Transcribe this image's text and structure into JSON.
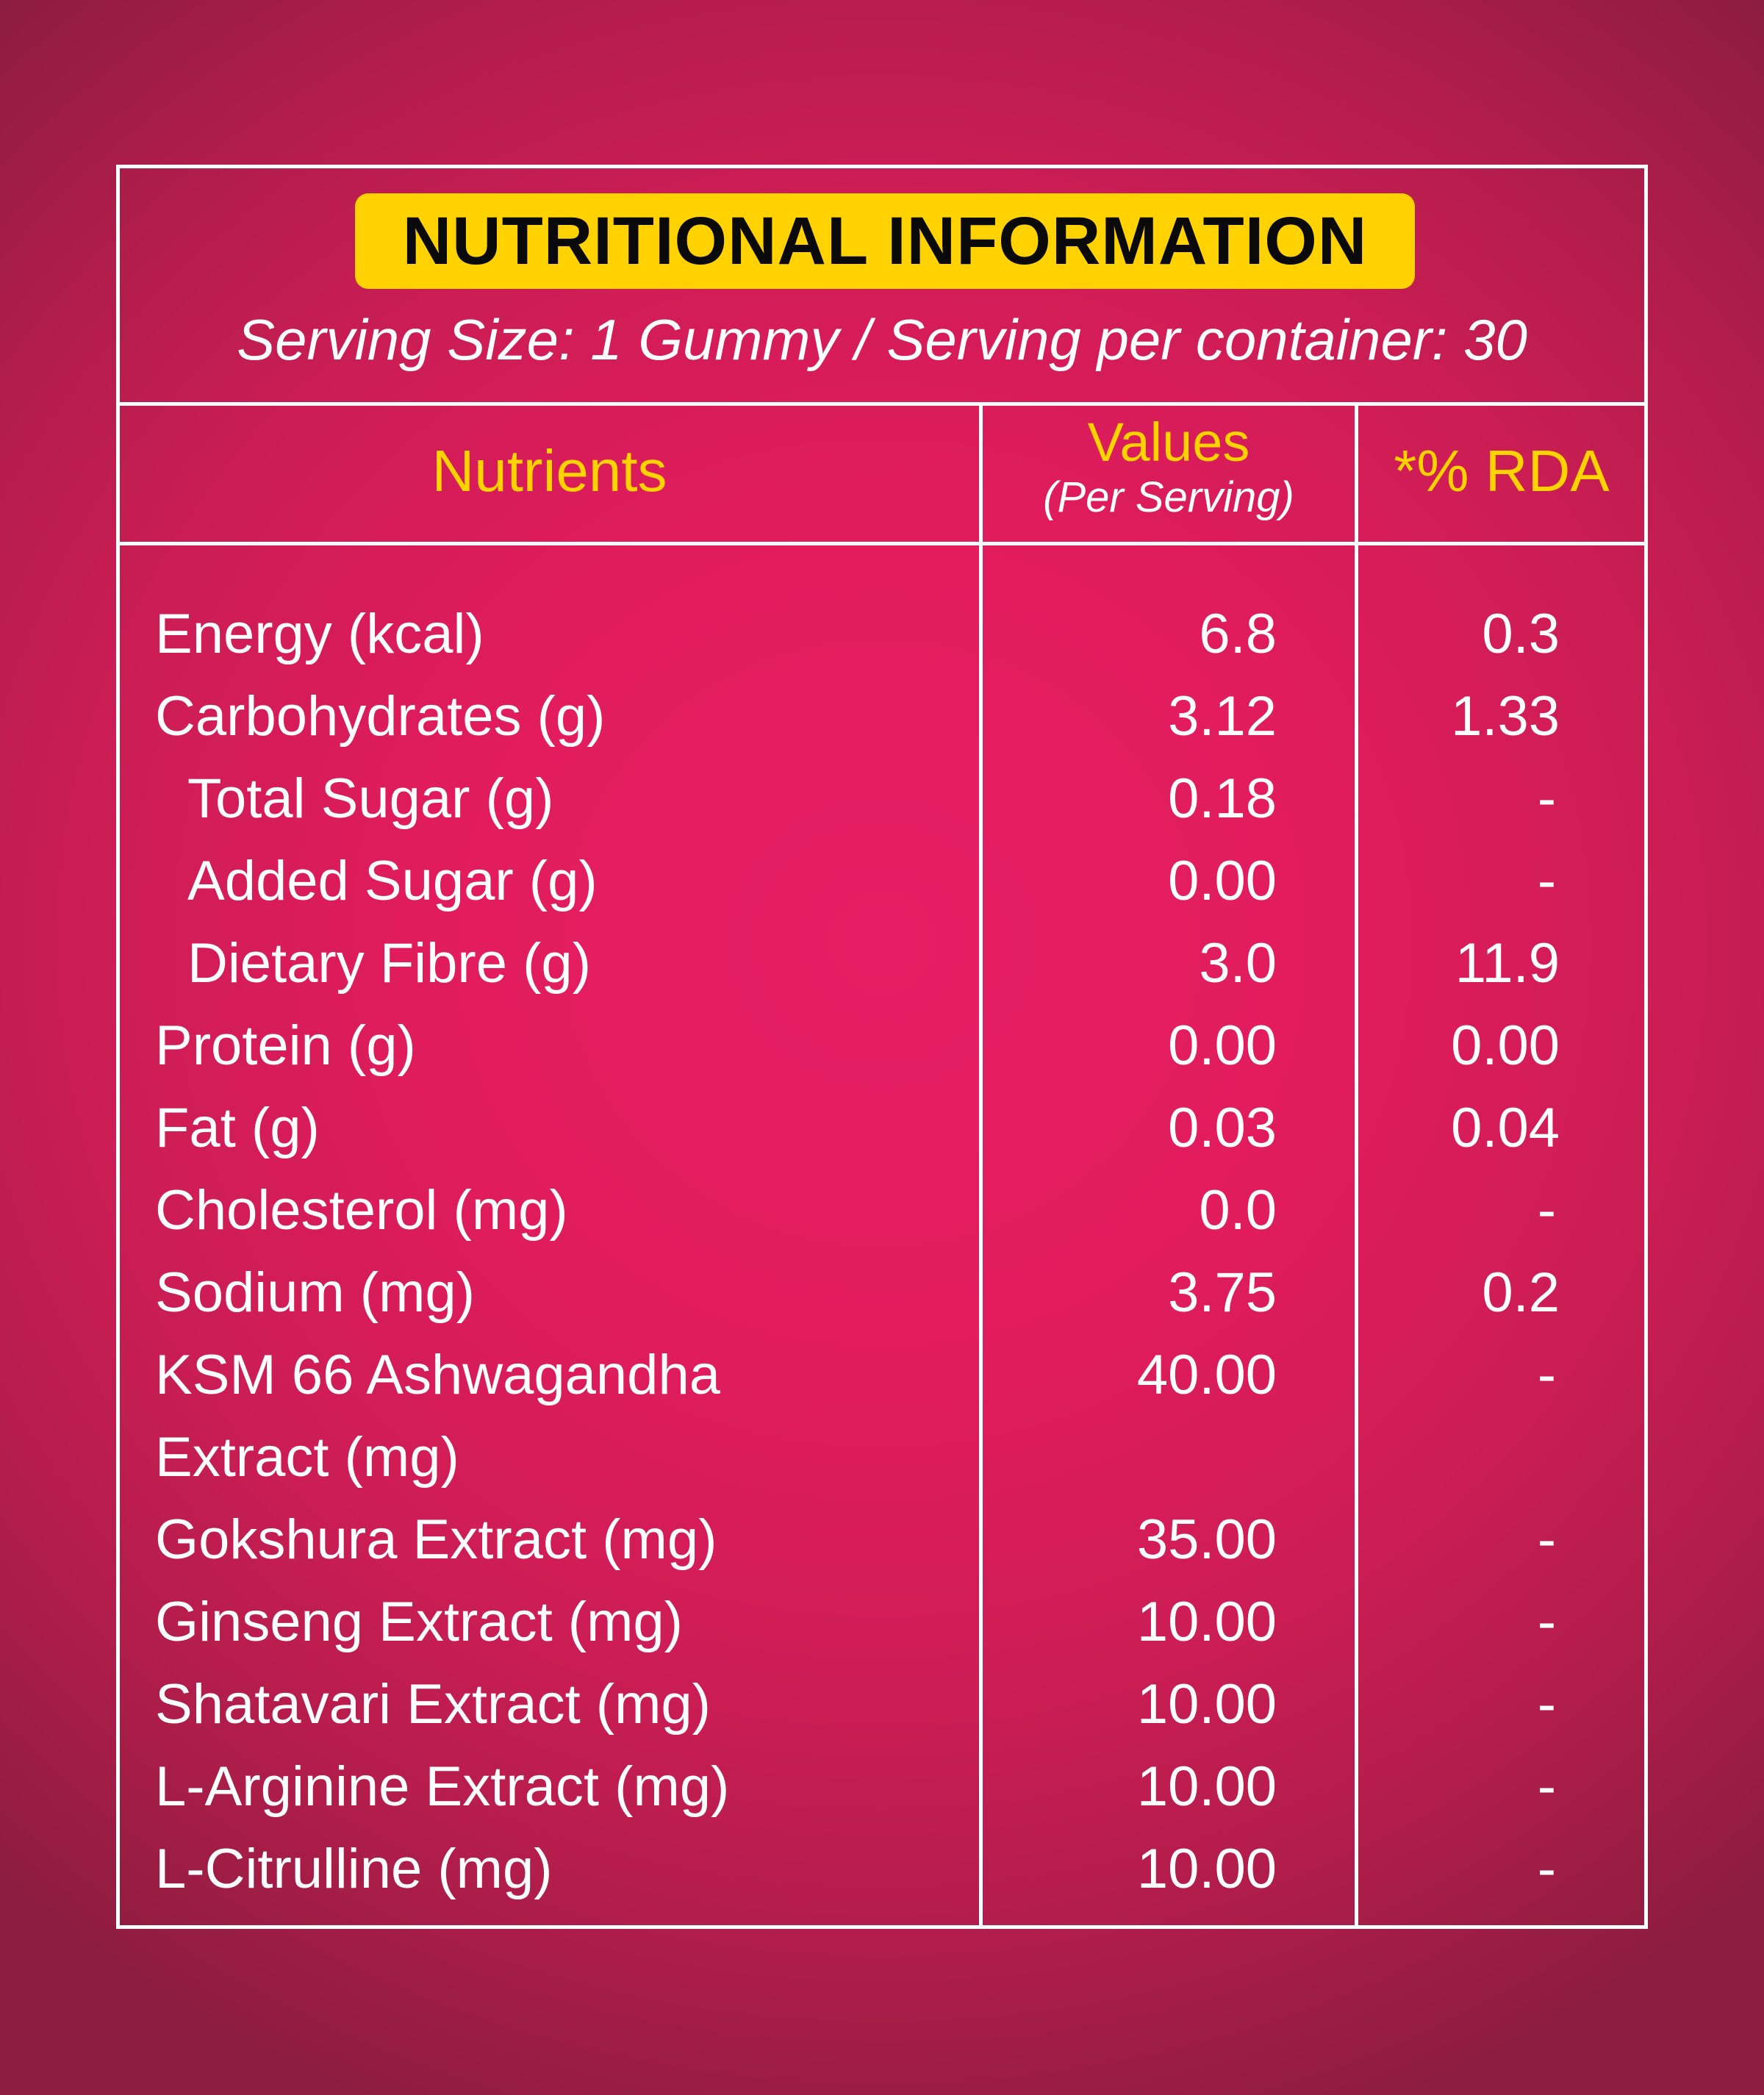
{
  "title": "NUTRITIONAL INFORMATION",
  "serving": "Serving Size: 1 Gummy / Serving per container: 30",
  "columns": {
    "nutrients": "Nutrients",
    "values": "Values",
    "values_sub": "(Per Serving)",
    "rda": "*% RDA"
  },
  "rows": [
    {
      "name": "Energy (kcal)",
      "value": "6.8",
      "rda": "0.3"
    },
    {
      "name": "Carbohydrates (g)",
      "value": "3.12",
      "rda": "1.33"
    },
    {
      "name": "Total Sugar (g)",
      "value": "0.18",
      "rda": "-"
    },
    {
      "name": "Added Sugar (g)",
      "value": "0.00",
      "rda": "-"
    },
    {
      "name": "Dietary Fibre (g)",
      "value": "3.0",
      "rda": "11.9"
    },
    {
      "name": "Protein (g)",
      "value": "0.00",
      "rda": "0.00"
    },
    {
      "name": "Fat (g)",
      "value": "0.03",
      "rda": "0.04"
    },
    {
      "name": "Cholesterol (mg)",
      "value": "0.0",
      "rda": "-"
    },
    {
      "name": "Sodium (mg)",
      "value": "3.75",
      "rda": "0.2"
    },
    {
      "name": "KSM 66 Ashwagandha",
      "value": "40.00",
      "rda": "-"
    },
    {
      "name": "Extract (mg)",
      "value": "",
      "rda": ""
    },
    {
      "name": "Gokshura Extract (mg)",
      "value": "35.00",
      "rda": "-"
    },
    {
      "name": "Ginseng Extract (mg)",
      "value": "10.00",
      "rda": "-"
    },
    {
      "name": "Shatavari Extract (mg)",
      "value": "10.00",
      "rda": "-"
    },
    {
      "name": "L-Arginine Extract (mg)",
      "value": "10.00",
      "rda": "-"
    },
    {
      "name": "L-Citrulline (mg)",
      "value": "10.00",
      "rda": "-"
    }
  ],
  "colors": {
    "background": "#e11c5c",
    "accent": "#ffd200",
    "text": "#ffffff"
  }
}
